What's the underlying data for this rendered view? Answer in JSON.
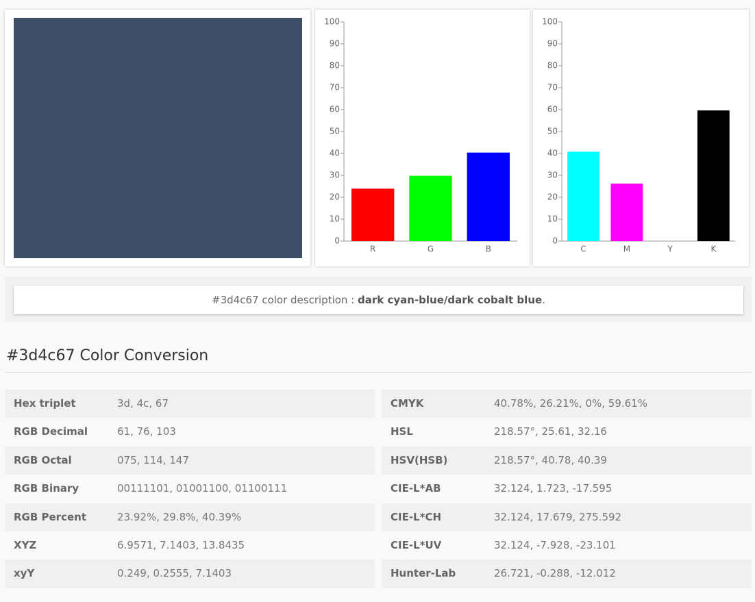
{
  "swatch": {
    "color": "#3d4c67"
  },
  "chart_data": [
    {
      "type": "bar",
      "categories": [
        "R",
        "G",
        "B"
      ],
      "values": [
        23.92,
        29.8,
        40.39
      ],
      "colors": [
        "#ff0000",
        "#00ff00",
        "#0000ff"
      ],
      "ylim": [
        0,
        100
      ],
      "yticks": [
        0,
        10,
        20,
        30,
        40,
        50,
        60,
        70,
        80,
        90,
        100
      ]
    },
    {
      "type": "bar",
      "categories": [
        "C",
        "M",
        "Y",
        "K"
      ],
      "values": [
        40.78,
        26.21,
        0,
        59.61
      ],
      "colors": [
        "#00ffff",
        "#ff00ff",
        "#ffff00",
        "#000000"
      ],
      "ylim": [
        0,
        100
      ],
      "yticks": [
        0,
        10,
        20,
        30,
        40,
        50,
        60,
        70,
        80,
        90,
        100
      ]
    }
  ],
  "description": {
    "prefix": "#3d4c67 color description",
    "separator": " : ",
    "name": "dark cyan-blue/dark cobalt blue",
    "suffix": "."
  },
  "conversion": {
    "title": "#3d4c67 Color Conversion",
    "left": [
      [
        "Hex triplet",
        "3d, 4c, 67"
      ],
      [
        "RGB Decimal",
        "61, 76, 103"
      ],
      [
        "RGB Octal",
        "075, 114, 147"
      ],
      [
        "RGB Binary",
        "00111101, 01001100, 01100111"
      ],
      [
        "RGB Percent",
        "23.92%, 29.8%, 40.39%"
      ],
      [
        "XYZ",
        "6.9571, 7.1403, 13.8435"
      ],
      [
        "xyY",
        "0.249, 0.2555, 7.1403"
      ]
    ],
    "right": [
      [
        "CMYK",
        "40.78%, 26.21%, 0%, 59.61%"
      ],
      [
        "HSL",
        "218.57°, 25.61, 32.16"
      ],
      [
        "HSV(HSB)",
        "218.57°, 40.78, 40.39"
      ],
      [
        "CIE-L*AB",
        "32.124, 1.723, -17.595"
      ],
      [
        "CIE-L*CH",
        "32.124, 17.679, 275.592"
      ],
      [
        "CIE-L*UV",
        "32.124, -7.928, -23.101"
      ],
      [
        "Hunter-Lab",
        "26.721, -0.288, -12.012"
      ]
    ]
  }
}
